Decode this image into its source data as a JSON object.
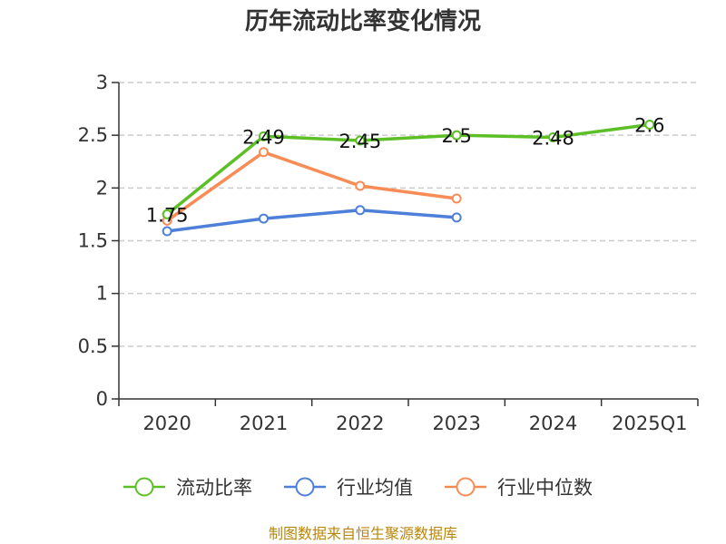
{
  "chart_data": {
    "type": "line",
    "title": "历年流动比率变化情况",
    "categories": [
      "2020",
      "2021",
      "2022",
      "2023",
      "2024",
      "2025Q1"
    ],
    "ylim": [
      0,
      3
    ],
    "yticks": [
      0,
      0.5,
      1,
      1.5,
      2,
      2.5,
      3
    ],
    "ytick_labels": [
      "0",
      "0.5",
      "1",
      "1.5",
      "2",
      "2.5",
      "3"
    ],
    "grid": "horizontal-dashed",
    "legend_position": "bottom",
    "series": [
      {
        "name": "流动比率",
        "color": "#5cbf26",
        "values": [
          1.75,
          2.49,
          2.45,
          2.5,
          2.48,
          2.6
        ],
        "labels": [
          "1.75",
          "2.49",
          "2.45",
          "2.5",
          "2.48",
          "2.6"
        ],
        "show_labels": true
      },
      {
        "name": "行业均值",
        "color": "#4e7fd9",
        "values": [
          1.59,
          1.71,
          1.79,
          1.72,
          null,
          null
        ],
        "show_labels": false
      },
      {
        "name": "行业中位数",
        "color": "#f98c55",
        "values": [
          1.69,
          2.34,
          2.02,
          1.9,
          null,
          null
        ],
        "show_labels": false
      }
    ]
  },
  "source_text": "制图数据来自恒生聚源数据库"
}
